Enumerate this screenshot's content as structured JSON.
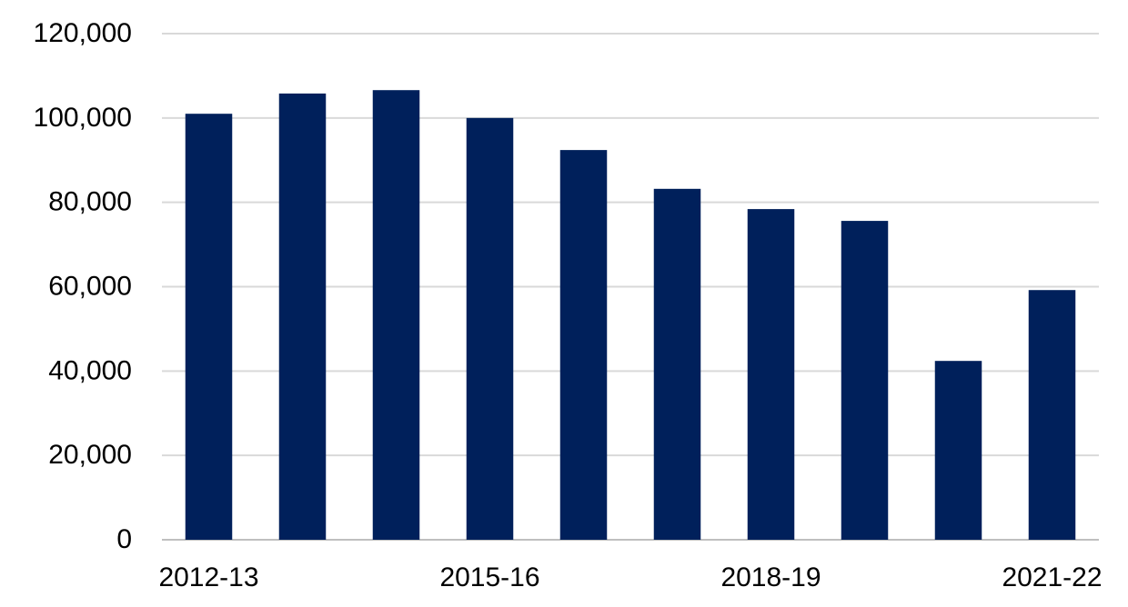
{
  "chart_data": {
    "type": "bar",
    "categories": [
      "2012-13",
      null,
      null,
      "2015-16",
      null,
      null,
      "2018-19",
      null,
      null,
      "2021-22"
    ],
    "values": [
      101000,
      105800,
      106600,
      100000,
      92400,
      83200,
      78400,
      75600,
      42400,
      59200
    ],
    "color": "#00205b",
    "ylim": [
      0,
      120000
    ],
    "yticks": [
      0,
      {
        "value": 20000,
        "label": "20,000"
      },
      {
        "value": 40000,
        "label": "40,000"
      },
      {
        "value": 60000,
        "label": "60,000"
      },
      {
        "value": 80000,
        "label": "80,000"
      },
      {
        "value": 100000,
        "label": "100,000"
      },
      {
        "value": 120000,
        "label": "120,000"
      }
    ],
    "grid": true
  }
}
